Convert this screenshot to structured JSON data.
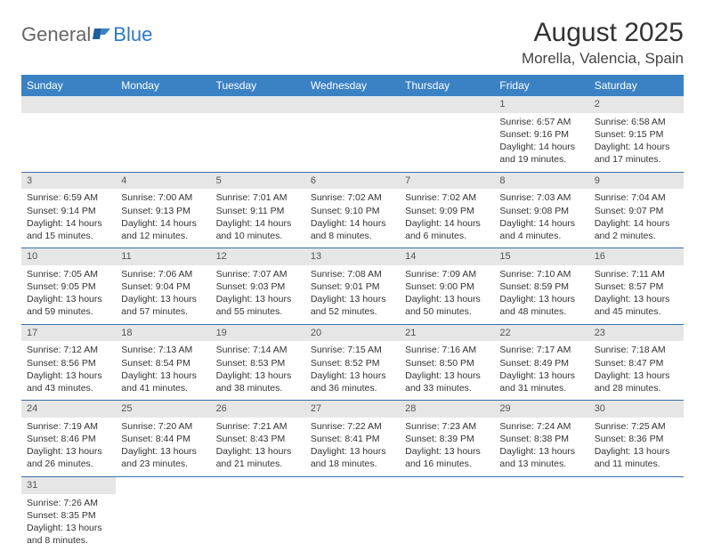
{
  "logo": {
    "part1": "General",
    "part2": "Blue"
  },
  "title": "August 2025",
  "location": "Morella, Valencia, Spain",
  "weekdays": [
    "Sunday",
    "Monday",
    "Tuesday",
    "Wednesday",
    "Thursday",
    "Friday",
    "Saturday"
  ],
  "colors": {
    "header_bg": "#3b82c4",
    "header_fg": "#ffffff",
    "daynum_bg": "#e6e6e6",
    "rule": "#3b6fa8",
    "logo_blue": "#2b78c2"
  },
  "weeks": [
    [
      null,
      null,
      null,
      null,
      null,
      {
        "n": "1",
        "sr": "Sunrise: 6:57 AM",
        "ss": "Sunset: 9:16 PM",
        "d1": "Daylight: 14 hours",
        "d2": "and 19 minutes."
      },
      {
        "n": "2",
        "sr": "Sunrise: 6:58 AM",
        "ss": "Sunset: 9:15 PM",
        "d1": "Daylight: 14 hours",
        "d2": "and 17 minutes."
      }
    ],
    [
      {
        "n": "3",
        "sr": "Sunrise: 6:59 AM",
        "ss": "Sunset: 9:14 PM",
        "d1": "Daylight: 14 hours",
        "d2": "and 15 minutes."
      },
      {
        "n": "4",
        "sr": "Sunrise: 7:00 AM",
        "ss": "Sunset: 9:13 PM",
        "d1": "Daylight: 14 hours",
        "d2": "and 12 minutes."
      },
      {
        "n": "5",
        "sr": "Sunrise: 7:01 AM",
        "ss": "Sunset: 9:11 PM",
        "d1": "Daylight: 14 hours",
        "d2": "and 10 minutes."
      },
      {
        "n": "6",
        "sr": "Sunrise: 7:02 AM",
        "ss": "Sunset: 9:10 PM",
        "d1": "Daylight: 14 hours",
        "d2": "and 8 minutes."
      },
      {
        "n": "7",
        "sr": "Sunrise: 7:02 AM",
        "ss": "Sunset: 9:09 PM",
        "d1": "Daylight: 14 hours",
        "d2": "and 6 minutes."
      },
      {
        "n": "8",
        "sr": "Sunrise: 7:03 AM",
        "ss": "Sunset: 9:08 PM",
        "d1": "Daylight: 14 hours",
        "d2": "and 4 minutes."
      },
      {
        "n": "9",
        "sr": "Sunrise: 7:04 AM",
        "ss": "Sunset: 9:07 PM",
        "d1": "Daylight: 14 hours",
        "d2": "and 2 minutes."
      }
    ],
    [
      {
        "n": "10",
        "sr": "Sunrise: 7:05 AM",
        "ss": "Sunset: 9:05 PM",
        "d1": "Daylight: 13 hours",
        "d2": "and 59 minutes."
      },
      {
        "n": "11",
        "sr": "Sunrise: 7:06 AM",
        "ss": "Sunset: 9:04 PM",
        "d1": "Daylight: 13 hours",
        "d2": "and 57 minutes."
      },
      {
        "n": "12",
        "sr": "Sunrise: 7:07 AM",
        "ss": "Sunset: 9:03 PM",
        "d1": "Daylight: 13 hours",
        "d2": "and 55 minutes."
      },
      {
        "n": "13",
        "sr": "Sunrise: 7:08 AM",
        "ss": "Sunset: 9:01 PM",
        "d1": "Daylight: 13 hours",
        "d2": "and 52 minutes."
      },
      {
        "n": "14",
        "sr": "Sunrise: 7:09 AM",
        "ss": "Sunset: 9:00 PM",
        "d1": "Daylight: 13 hours",
        "d2": "and 50 minutes."
      },
      {
        "n": "15",
        "sr": "Sunrise: 7:10 AM",
        "ss": "Sunset: 8:59 PM",
        "d1": "Daylight: 13 hours",
        "d2": "and 48 minutes."
      },
      {
        "n": "16",
        "sr": "Sunrise: 7:11 AM",
        "ss": "Sunset: 8:57 PM",
        "d1": "Daylight: 13 hours",
        "d2": "and 45 minutes."
      }
    ],
    [
      {
        "n": "17",
        "sr": "Sunrise: 7:12 AM",
        "ss": "Sunset: 8:56 PM",
        "d1": "Daylight: 13 hours",
        "d2": "and 43 minutes."
      },
      {
        "n": "18",
        "sr": "Sunrise: 7:13 AM",
        "ss": "Sunset: 8:54 PM",
        "d1": "Daylight: 13 hours",
        "d2": "and 41 minutes."
      },
      {
        "n": "19",
        "sr": "Sunrise: 7:14 AM",
        "ss": "Sunset: 8:53 PM",
        "d1": "Daylight: 13 hours",
        "d2": "and 38 minutes."
      },
      {
        "n": "20",
        "sr": "Sunrise: 7:15 AM",
        "ss": "Sunset: 8:52 PM",
        "d1": "Daylight: 13 hours",
        "d2": "and 36 minutes."
      },
      {
        "n": "21",
        "sr": "Sunrise: 7:16 AM",
        "ss": "Sunset: 8:50 PM",
        "d1": "Daylight: 13 hours",
        "d2": "and 33 minutes."
      },
      {
        "n": "22",
        "sr": "Sunrise: 7:17 AM",
        "ss": "Sunset: 8:49 PM",
        "d1": "Daylight: 13 hours",
        "d2": "and 31 minutes."
      },
      {
        "n": "23",
        "sr": "Sunrise: 7:18 AM",
        "ss": "Sunset: 8:47 PM",
        "d1": "Daylight: 13 hours",
        "d2": "and 28 minutes."
      }
    ],
    [
      {
        "n": "24",
        "sr": "Sunrise: 7:19 AM",
        "ss": "Sunset: 8:46 PM",
        "d1": "Daylight: 13 hours",
        "d2": "and 26 minutes."
      },
      {
        "n": "25",
        "sr": "Sunrise: 7:20 AM",
        "ss": "Sunset: 8:44 PM",
        "d1": "Daylight: 13 hours",
        "d2": "and 23 minutes."
      },
      {
        "n": "26",
        "sr": "Sunrise: 7:21 AM",
        "ss": "Sunset: 8:43 PM",
        "d1": "Daylight: 13 hours",
        "d2": "and 21 minutes."
      },
      {
        "n": "27",
        "sr": "Sunrise: 7:22 AM",
        "ss": "Sunset: 8:41 PM",
        "d1": "Daylight: 13 hours",
        "d2": "and 18 minutes."
      },
      {
        "n": "28",
        "sr": "Sunrise: 7:23 AM",
        "ss": "Sunset: 8:39 PM",
        "d1": "Daylight: 13 hours",
        "d2": "and 16 minutes."
      },
      {
        "n": "29",
        "sr": "Sunrise: 7:24 AM",
        "ss": "Sunset: 8:38 PM",
        "d1": "Daylight: 13 hours",
        "d2": "and 13 minutes."
      },
      {
        "n": "30",
        "sr": "Sunrise: 7:25 AM",
        "ss": "Sunset: 8:36 PM",
        "d1": "Daylight: 13 hours",
        "d2": "and 11 minutes."
      }
    ],
    [
      {
        "n": "31",
        "sr": "Sunrise: 7:26 AM",
        "ss": "Sunset: 8:35 PM",
        "d1": "Daylight: 13 hours",
        "d2": "and 8 minutes."
      },
      null,
      null,
      null,
      null,
      null,
      null
    ]
  ]
}
